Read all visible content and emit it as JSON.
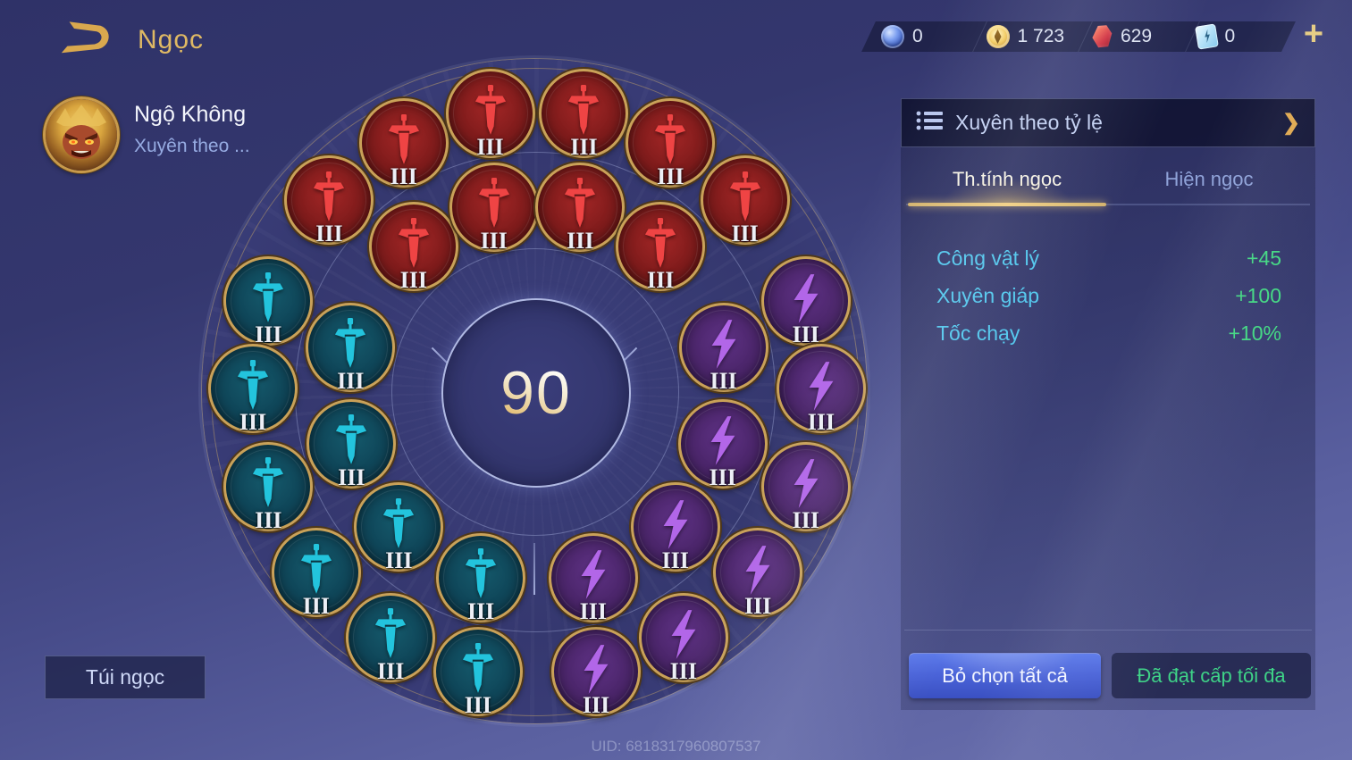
{
  "header": {
    "title": "Ngọc",
    "back_icon": "back-arrow-icon"
  },
  "currency_bar": {
    "items": [
      {
        "icon": "blue-orb-icon",
        "value": "0"
      },
      {
        "icon": "gold-coin-icon",
        "value": "1 723"
      },
      {
        "icon": "red-gem-icon",
        "value": "629"
      },
      {
        "icon": "blue-card-icon",
        "value": "0"
      }
    ],
    "add_label": "+"
  },
  "hero": {
    "name": "Ngộ Không",
    "build_label": "Xuyên theo ...",
    "avatar": "wukong-avatar"
  },
  "wheel": {
    "level": "90",
    "gems": [
      {
        "type": "red",
        "glyph": "sword-icon",
        "ring": "outer",
        "angle": -47,
        "level": "III"
      },
      {
        "type": "red",
        "glyph": "sword-icon",
        "ring": "outer",
        "angle": -28,
        "level": "III"
      },
      {
        "type": "red",
        "glyph": "sword-icon",
        "ring": "outer",
        "angle": -9.5,
        "level": "III"
      },
      {
        "type": "red",
        "glyph": "sword-icon",
        "ring": "outer",
        "angle": 9.5,
        "level": "III"
      },
      {
        "type": "red",
        "glyph": "sword-icon",
        "ring": "outer",
        "angle": 28,
        "level": "III"
      },
      {
        "type": "red",
        "glyph": "sword-icon",
        "ring": "outer",
        "angle": 47,
        "level": "III"
      },
      {
        "type": "red",
        "glyph": "sword-icon",
        "ring": "inner",
        "angle": -40,
        "level": "III"
      },
      {
        "type": "red",
        "glyph": "sword-icon",
        "ring": "inner",
        "angle": -13,
        "level": "III"
      },
      {
        "type": "red",
        "glyph": "sword-icon",
        "ring": "inner",
        "angle": 13,
        "level": "III"
      },
      {
        "type": "red",
        "glyph": "sword-icon",
        "ring": "inner",
        "angle": 40,
        "level": "III"
      },
      {
        "type": "purple",
        "glyph": "bolt-icon",
        "ring": "outer",
        "angle": 71,
        "level": "III"
      },
      {
        "type": "purple",
        "glyph": "bolt-icon",
        "ring": "outer",
        "angle": 89,
        "level": "III"
      },
      {
        "type": "purple",
        "glyph": "bolt-icon",
        "ring": "outer",
        "angle": 109,
        "level": "III"
      },
      {
        "type": "purple",
        "glyph": "bolt-icon",
        "ring": "outer",
        "angle": 129,
        "level": "III"
      },
      {
        "type": "purple",
        "glyph": "bolt-icon",
        "ring": "outer",
        "angle": 149,
        "level": "III"
      },
      {
        "type": "purple",
        "glyph": "bolt-icon",
        "ring": "outer",
        "angle": 168,
        "level": "III"
      },
      {
        "type": "purple",
        "glyph": "bolt-icon",
        "ring": "inner",
        "angle": 76,
        "level": "III"
      },
      {
        "type": "purple",
        "glyph": "bolt-icon",
        "ring": "inner",
        "angle": 105,
        "level": "III"
      },
      {
        "type": "purple",
        "glyph": "bolt-icon",
        "ring": "inner",
        "angle": 134,
        "level": "III"
      },
      {
        "type": "purple",
        "glyph": "bolt-icon",
        "ring": "inner",
        "angle": 163,
        "level": "III"
      },
      {
        "type": "teal",
        "glyph": "sword-icon",
        "ring": "outer",
        "angle": -71,
        "level": "III"
      },
      {
        "type": "teal",
        "glyph": "sword-icon",
        "ring": "outer",
        "angle": -89,
        "level": "III"
      },
      {
        "type": "teal",
        "glyph": "sword-icon",
        "ring": "outer",
        "angle": -109,
        "level": "III"
      },
      {
        "type": "teal",
        "glyph": "sword-icon",
        "ring": "outer",
        "angle": -129,
        "level": "III"
      },
      {
        "type": "teal",
        "glyph": "sword-icon",
        "ring": "outer",
        "angle": -149,
        "level": "III"
      },
      {
        "type": "teal",
        "glyph": "sword-icon",
        "ring": "outer",
        "angle": -168,
        "level": "III"
      },
      {
        "type": "teal",
        "glyph": "sword-icon",
        "ring": "inner",
        "angle": -76,
        "level": "III"
      },
      {
        "type": "teal",
        "glyph": "sword-icon",
        "ring": "inner",
        "angle": -105,
        "level": "III"
      },
      {
        "type": "teal",
        "glyph": "sword-icon",
        "ring": "inner",
        "angle": -134,
        "level": "III"
      },
      {
        "type": "teal",
        "glyph": "sword-icon",
        "ring": "inner",
        "angle": -163,
        "level": "III"
      }
    ]
  },
  "panel": {
    "header": {
      "icon": "list-icon",
      "title": "Xuyên theo tỷ lệ",
      "chevron": "❯"
    },
    "tabs": [
      {
        "label": "Th.tính ngọc",
        "active": true
      },
      {
        "label": "Hiện ngọc",
        "active": false
      }
    ],
    "stats": [
      {
        "label": "Công vật lý",
        "value": "+45"
      },
      {
        "label": "Xuyên giáp",
        "value": "+100"
      },
      {
        "label": "Tốc chạy",
        "value": "+10%"
      }
    ],
    "buttons": [
      {
        "label": "Bỏ chọn tất cả",
        "style": "primary"
      },
      {
        "label": "Đã đạt cấp tối đa",
        "style": "maxed"
      }
    ]
  },
  "footer": {
    "bag_button": "Túi ngọc",
    "uid": "UID: 6818317960807537"
  },
  "colors": {
    "accent_gold": "#dfb964",
    "stat_label_cyan": "#4fc6ec",
    "stat_value_green": "#43d883",
    "maxed_green": "#3ed287",
    "gem_red": "#ef4444",
    "gem_teal": "#23c4dd",
    "gem_purple": "#b266e8",
    "primary_button_blue": "#4a63d8"
  }
}
